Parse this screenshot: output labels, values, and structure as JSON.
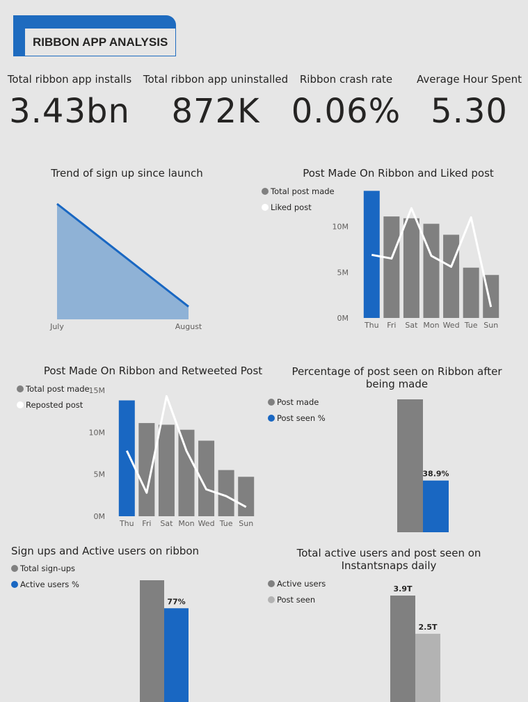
{
  "header": {
    "title": "RIBBON APP ANALYSIS"
  },
  "kpis": [
    {
      "label": "Total ribbon app installs",
      "value": "3.43bn"
    },
    {
      "label": "Total ribbon app uninstalled",
      "value": "872K"
    },
    {
      "label": "Ribbon crash rate",
      "value": "0.06%"
    },
    {
      "label": "Average Hour Spent",
      "value": "5.30"
    }
  ],
  "colors": {
    "blue": "#1967c2",
    "gray": "#808080",
    "lightgray": "#b3b3b3",
    "area": "#8fb2d6",
    "line": "#ffffff"
  },
  "chart_data": [
    {
      "type": "area",
      "title": "Trend of sign up since launch",
      "categories": [
        "July",
        "August"
      ],
      "values": [
        100,
        11
      ],
      "ylim": [
        0,
        100
      ]
    },
    {
      "type": "bar",
      "title": "Post Made On Ribbon and Liked post",
      "categories": [
        "Thu",
        "Fri",
        "Sat",
        "Mon",
        "Wed",
        "Tue",
        "Sun"
      ],
      "ylim": [
        0,
        14
      ],
      "yticks": [
        "0M",
        "5M",
        "10M"
      ],
      "ytick_values": [
        0,
        5,
        10
      ],
      "legend": [
        "Total post made",
        "Liked post"
      ],
      "series": [
        {
          "name": "Total post made",
          "type": "bar",
          "values": [
            13.9,
            11.1,
            10.9,
            10.3,
            9.1,
            5.5,
            4.7
          ]
        },
        {
          "name": "Liked post",
          "type": "line",
          "values": [
            6.9,
            6.5,
            12.0,
            6.8,
            5.6,
            11.0,
            1.2
          ]
        }
      ],
      "highlight_index": 0
    },
    {
      "type": "bar",
      "title": "Post Made On Ribbon and Retweeted Post",
      "categories": [
        "Thu",
        "Fri",
        "Sat",
        "Mon",
        "Wed",
        "Tue",
        "Sun"
      ],
      "ylim": [
        0,
        15
      ],
      "yticks": [
        "0M",
        "5M",
        "10M",
        "15M"
      ],
      "ytick_values": [
        0,
        5,
        10,
        15
      ],
      "legend": [
        "Total post made",
        "Reposted post"
      ],
      "series": [
        {
          "name": "Total post made",
          "type": "bar",
          "values": [
            13.8,
            11.1,
            10.9,
            10.3,
            9.0,
            5.5,
            4.7
          ]
        },
        {
          "name": "Reposted post",
          "type": "line",
          "values": [
            7.8,
            2.8,
            14.3,
            7.8,
            3.2,
            2.4,
            1.1
          ]
        }
      ],
      "highlight_index": 0
    },
    {
      "type": "bar",
      "title": "Percentage of post seen on Ribbon after being made",
      "legend": [
        "Post made",
        "Post seen %"
      ],
      "series": [
        {
          "name": "Post made",
          "values": [
            100
          ]
        },
        {
          "name": "Post seen %",
          "values": [
            38.9
          ]
        }
      ],
      "data_labels": [
        "",
        "38.9%"
      ],
      "ylim": [
        0,
        100
      ]
    },
    {
      "type": "bar",
      "title": "Sign ups and Active users on ribbon",
      "legend": [
        "Total sign-ups",
        "Active users %"
      ],
      "series": [
        {
          "name": "Total sign-ups",
          "values": [
            100
          ]
        },
        {
          "name": "Active users %",
          "values": [
            77
          ]
        }
      ],
      "data_labels": [
        "",
        "77%"
      ],
      "ylim": [
        0,
        100
      ]
    },
    {
      "type": "bar",
      "title": "Total active users and post seen on Instantsnaps daily",
      "legend": [
        "Active users",
        "Post seen"
      ],
      "series": [
        {
          "name": "Active users",
          "values": [
            3.9
          ]
        },
        {
          "name": "Post seen",
          "values": [
            2.5
          ]
        }
      ],
      "data_labels": [
        "3.9T",
        "2.5T"
      ],
      "ylim": [
        0,
        3.9
      ]
    }
  ]
}
